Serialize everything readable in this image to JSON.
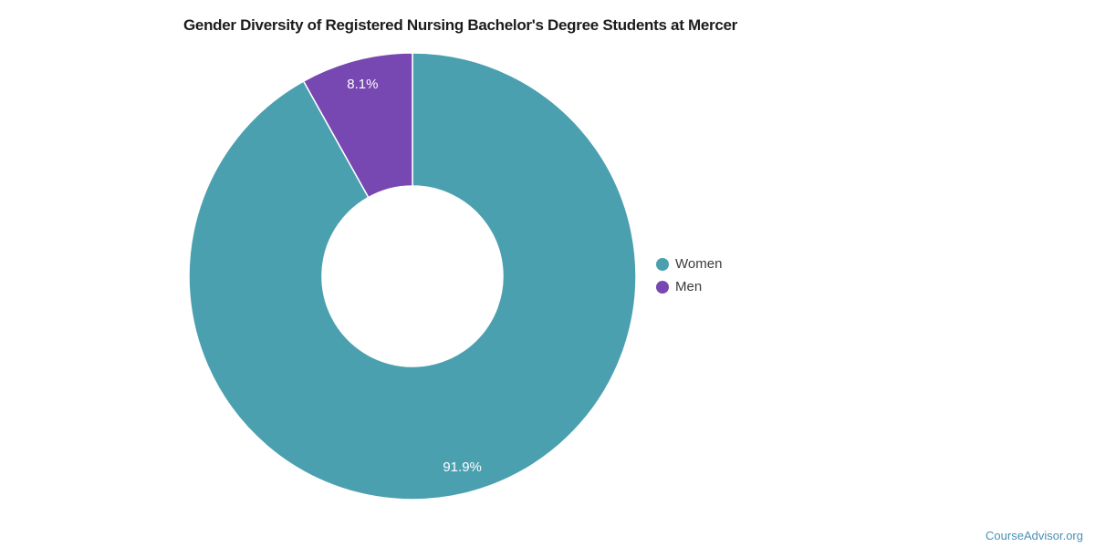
{
  "page": {
    "title": "Gender Diversity of Registered Nursing Bachelor's Degree Students at Mercer",
    "attribution": "CourseAdvisor.org"
  },
  "colors": {
    "women": "#4ba0b0",
    "men": "#7747b2",
    "slice_border": "#ffffff",
    "slice_label_text": "#ffffff",
    "legend_text": "#3c3c3c",
    "attribution_link": "#4a90b8",
    "title_text": "#1c1c1c",
    "background": "#ffffff"
  },
  "chart_data": {
    "type": "pie",
    "donut": true,
    "title": "Gender Diversity of Registered Nursing Bachelor's Degree Students at Mercer",
    "units": "percent",
    "start_angle": "12-oclock",
    "direction": "clockwise",
    "slices": [
      {
        "label": "Women",
        "value": 91.9,
        "display": "91.9%",
        "color": "#4ba0b0"
      },
      {
        "label": "Men",
        "value": 8.1,
        "display": "8.1%",
        "color": "#7747b2"
      }
    ],
    "legend": {
      "position": "right-middle",
      "entries": [
        {
          "label": "Women",
          "color": "#4ba0b0"
        },
        {
          "label": "Men",
          "color": "#7747b2"
        }
      ]
    }
  }
}
